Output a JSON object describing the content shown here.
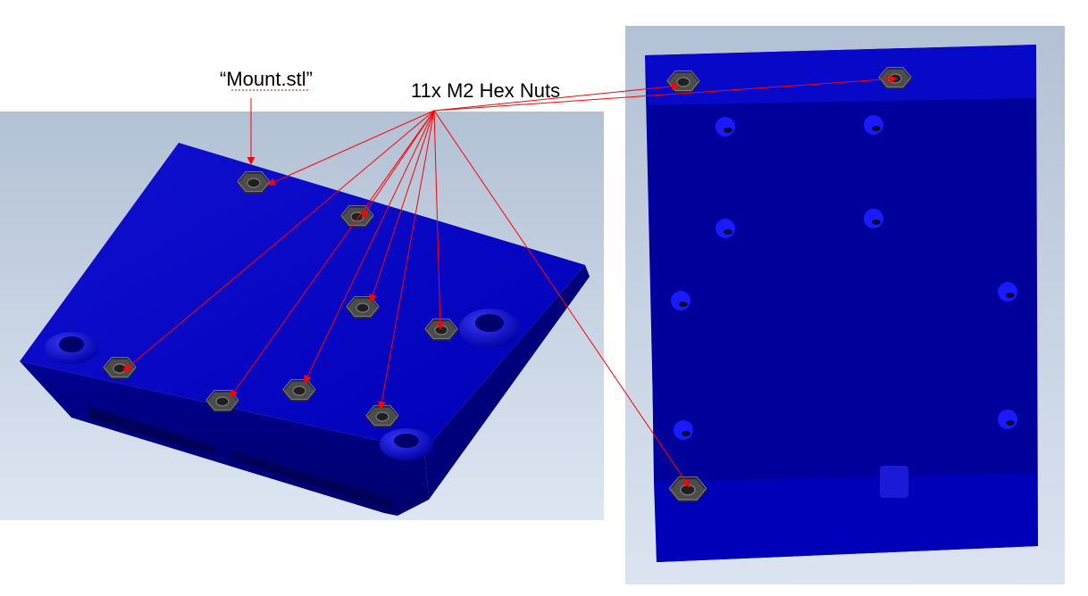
{
  "annotations": {
    "part_label": "“Mount.stl”",
    "nuts_label": "11x M2 Hex Nuts"
  },
  "colors": {
    "part_blue": "#0000b4",
    "arrow_red": "#ff0000",
    "nut_gray": "#5a5a5a",
    "viewport_bg": "#c2cfe0"
  }
}
